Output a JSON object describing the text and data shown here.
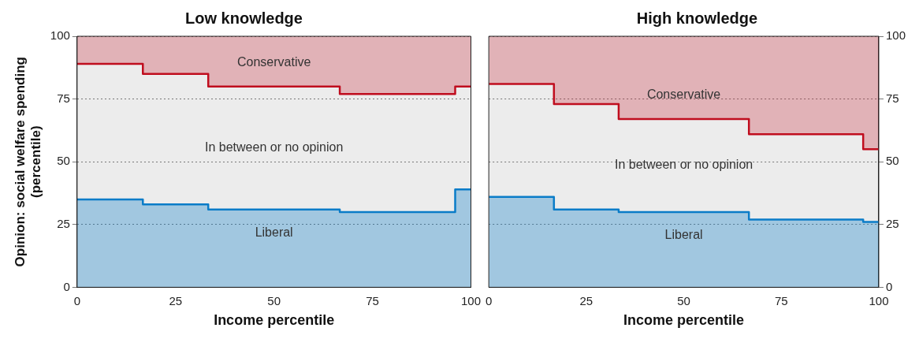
{
  "chart_data": [
    {
      "type": "area",
      "title": "Low knowledge",
      "xlabel": "Income percentile",
      "ylabel": "Opinion: social welfare spending\n(percentile)",
      "x": [
        0,
        16.7,
        16.7,
        33.3,
        33.3,
        66.7,
        66.7,
        96,
        96,
        100
      ],
      "series": [
        {
          "name": "Liberal",
          "color": "#0a7cc8",
          "values": [
            35,
            35,
            33,
            33,
            31,
            31,
            30,
            30,
            39,
            39
          ]
        },
        {
          "name": "Conservative",
          "type": "line",
          "color": "#c00d1e",
          "values": [
            89,
            89,
            85,
            85,
            80,
            80,
            77,
            77,
            80,
            80
          ],
          "lower": [
            89,
            89,
            85,
            85,
            80,
            80,
            77,
            77,
            80,
            80
          ],
          "upper": [
            100,
            100,
            100,
            100,
            100,
            100,
            100,
            100,
            100,
            100
          ]
        }
      ],
      "annotations": [
        "In between or no opinion"
      ],
      "xlim": [
        0,
        100
      ],
      "xticks": [
        0,
        25,
        50,
        75,
        100
      ],
      "ylim": [
        0,
        100
      ],
      "yticks": [
        0,
        25,
        50,
        75,
        100
      ],
      "grid": "y",
      "legend": false
    },
    {
      "type": "area",
      "title": "High knowledge",
      "xlabel": "Income percentile",
      "x": [
        0,
        16.7,
        16.7,
        33.3,
        33.3,
        66.7,
        66.7,
        96,
        96,
        100
      ],
      "series": [
        {
          "name": "Liberal",
          "color": "#0a7cc8",
          "axis": "y2",
          "values": [
            36,
            36,
            31,
            31,
            30,
            30,
            27,
            27,
            26,
            26
          ]
        },
        {
          "name": "Conservative",
          "type": "line",
          "color": "#c00d1e",
          "axis": "y2",
          "values": [
            81,
            81,
            73,
            73,
            67,
            67,
            61,
            61,
            55,
            55
          ],
          "lower": [
            81,
            81,
            73,
            73,
            67,
            67,
            61,
            61,
            55,
            55
          ],
          "upper": [
            100,
            100,
            100,
            100,
            100,
            100,
            100,
            100,
            100,
            100
          ]
        }
      ],
      "annotations": [
        "In between or no opinion"
      ],
      "xlim": [
        0,
        100
      ],
      "xticks": [
        0,
        25,
        50,
        75,
        100
      ],
      "y2lim": [
        0,
        100
      ],
      "y2ticks": [
        0,
        25,
        50,
        75,
        100
      ],
      "grid": "y",
      "legend": false
    }
  ]
}
